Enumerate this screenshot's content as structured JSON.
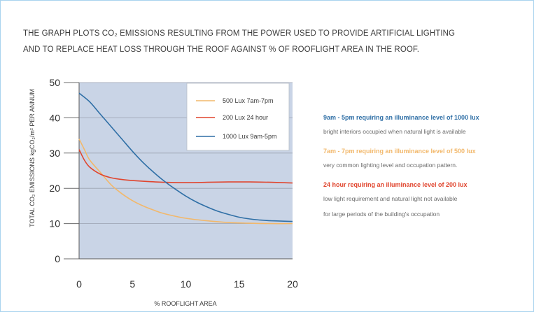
{
  "title_lines": [
    "THE GRAPH PLOTS CO₂ EMISSIONS RESULTING FROM THE POWER USED TO PROVIDE ARTIFICIAL LIGHTING",
    "AND TO REPLACE HEAT LOSS THROUGH THE ROOF AGAINST % OF ROOFLIGHT AREA IN THE ROOF."
  ],
  "chart_data": {
    "type": "line",
    "title": "THE GRAPH PLOTS CO₂ EMISSIONS RESULTING FROM THE POWER USED TO PROVIDE ARTIFICIAL LIGHTING AND TO REPLACE HEAT LOSS THROUGH THE ROOF AGAINST % OF ROOFLIGHT AREA IN THE ROOF.",
    "xlabel": "% ROOFLIGHT AREA",
    "ylabel": "TOTAL CO₂ EMISSIONS kgCO₂/m² PER ANNUM",
    "xlim": [
      0,
      20
    ],
    "ylim": [
      0,
      50
    ],
    "xticks": [
      0,
      5,
      10,
      15,
      20
    ],
    "yticks": [
      0,
      10,
      20,
      30,
      40,
      50
    ],
    "grid": true,
    "legend_position": "top-right",
    "series": [
      {
        "name": "500 Lux 7am-7pm",
        "color": "#f2b86b",
        "x": [
          0,
          0.5,
          1,
          2,
          3,
          4,
          5,
          6,
          7,
          8,
          10,
          12,
          14,
          16,
          18,
          20
        ],
        "y": [
          34,
          31,
          28,
          24.5,
          21,
          18.5,
          16.5,
          15,
          13.8,
          12.8,
          11.5,
          10.8,
          10.3,
          10.1,
          10.0,
          10.0
        ]
      },
      {
        "name": "200 Lux 24 hour",
        "color": "#e0452e",
        "x": [
          0,
          0.5,
          1,
          2,
          3,
          4,
          5,
          6,
          8,
          10,
          12,
          14,
          16,
          18,
          20
        ],
        "y": [
          31,
          28,
          26,
          24,
          23,
          22.5,
          22.2,
          22,
          21.7,
          21.6,
          21.7,
          21.8,
          21.8,
          21.7,
          21.5
        ]
      },
      {
        "name": "1000 Lux 9am-5pm",
        "color": "#2f6fa6",
        "x": [
          0,
          1,
          2,
          3,
          4,
          5,
          6,
          7,
          8,
          9,
          10,
          11,
          12,
          13,
          14,
          15,
          16,
          17,
          18,
          19,
          20
        ],
        "y": [
          47,
          44.5,
          41,
          37.5,
          34,
          30.5,
          27.3,
          24.5,
          22,
          19.8,
          17.8,
          16.1,
          14.7,
          13.5,
          12.6,
          11.8,
          11.3,
          11.0,
          10.8,
          10.7,
          10.6
        ]
      }
    ]
  },
  "notes": [
    {
      "heading": "9am - 5pm requiring an illuminance level of 1000 lux",
      "color": "#2f6fa6",
      "lines": [
        "bright interiors occupied when natural light is available"
      ]
    },
    {
      "heading": "7am - 7pm requiring an illuminance level of 500 lux",
      "color": "#f2b86b",
      "lines": [
        "very common lighting level and occupation pattern."
      ]
    },
    {
      "heading": "24 hour requiring an illuminance level of 200 lux",
      "color": "#e0452e",
      "lines": [
        "low light requirement and natural light not available",
        "for large periods of the building's occupation"
      ]
    }
  ],
  "colors": {
    "plot_background": "#c9d4e6",
    "frame_border": "#a9d3ee",
    "grid": "#9aa2b0"
  }
}
